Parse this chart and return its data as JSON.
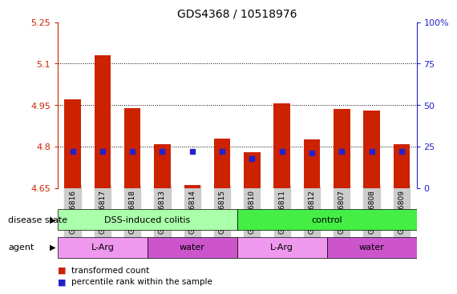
{
  "title": "GDS4368 / 10518976",
  "samples": [
    "GSM856816",
    "GSM856817",
    "GSM856818",
    "GSM856813",
    "GSM856814",
    "GSM856815",
    "GSM856810",
    "GSM856811",
    "GSM856812",
    "GSM856807",
    "GSM856808",
    "GSM856809"
  ],
  "bar_values": [
    4.97,
    5.13,
    4.94,
    4.81,
    4.66,
    4.83,
    4.78,
    4.955,
    4.825,
    4.935,
    4.93,
    4.81
  ],
  "bar_base": 4.65,
  "percentile_values": [
    22,
    22,
    22,
    22,
    22,
    22,
    18,
    22,
    21,
    22,
    22,
    22
  ],
  "ylim": [
    4.65,
    5.25
  ],
  "yticks": [
    4.65,
    4.8,
    4.95,
    5.1,
    5.25
  ],
  "ytick_labels": [
    "4.65",
    "4.8",
    "4.95",
    "5.1",
    "5.25"
  ],
  "y2lim": [
    0,
    100
  ],
  "y2ticks": [
    0,
    25,
    50,
    75,
    100
  ],
  "y2tick_labels": [
    "0",
    "25",
    "50",
    "75",
    "100%"
  ],
  "bar_color": "#cc2200",
  "percentile_color": "#2222cc",
  "tick_label_bg": "#cccccc",
  "disease_state_groups": [
    {
      "label": "DSS-induced colitis",
      "start": 0,
      "end": 5,
      "color": "#aaffaa"
    },
    {
      "label": "control",
      "start": 6,
      "end": 11,
      "color": "#44ee44"
    }
  ],
  "agent_groups": [
    {
      "label": "L-Arg",
      "start": 0,
      "end": 2,
      "color": "#ee99ee"
    },
    {
      "label": "water",
      "start": 3,
      "end": 5,
      "color": "#cc55cc"
    },
    {
      "label": "L-Arg",
      "start": 6,
      "end": 8,
      "color": "#ee99ee"
    },
    {
      "label": "water",
      "start": 9,
      "end": 11,
      "color": "#cc55cc"
    }
  ],
  "disease_row_label": "disease state",
  "agent_row_label": "agent",
  "legend_items": [
    {
      "label": "transformed count",
      "color": "#cc2200"
    },
    {
      "label": "percentile rank within the sample",
      "color": "#2222cc"
    }
  ]
}
